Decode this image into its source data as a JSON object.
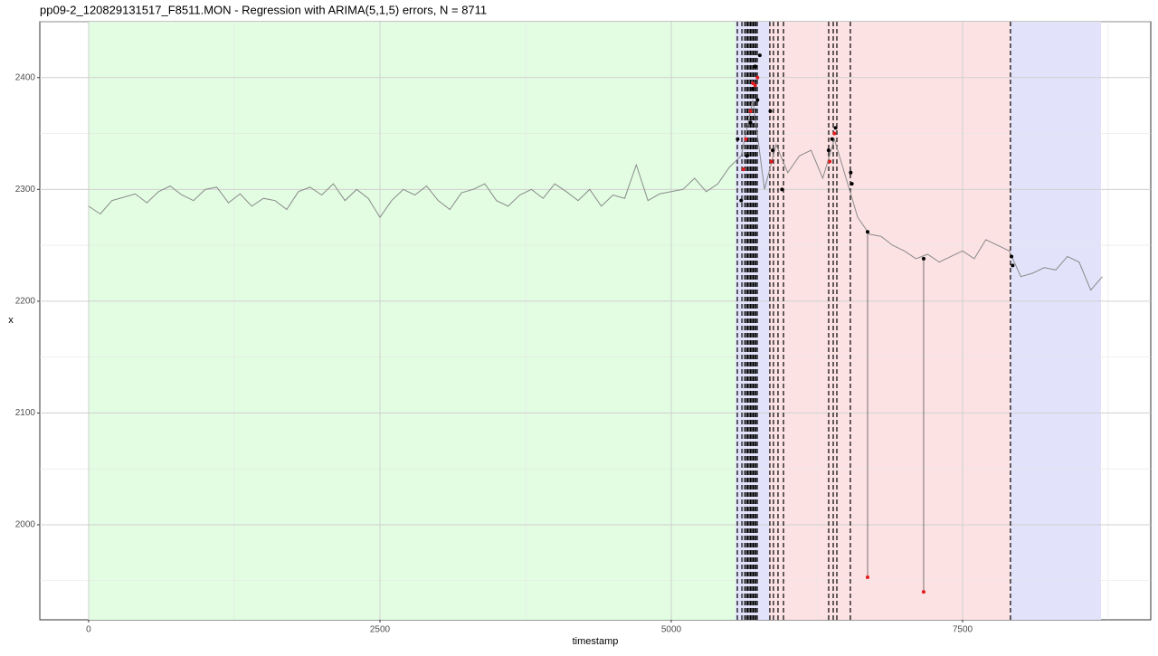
{
  "chart_data": {
    "type": "line",
    "title": "pp09-2_120829131517_F8511.MON - Regression with ARIMA(5,1,5) errors, N = 8711",
    "x_label": "timestamp",
    "y_label": "x",
    "xlim": [
      -419,
      9115
    ],
    "ylim": [
      1915,
      2450
    ],
    "xticks": [
      0,
      2500,
      5000,
      7500
    ],
    "yticks": [
      2000,
      2100,
      2200,
      2300,
      2400
    ],
    "xminor": [
      1250,
      3750,
      6250,
      8750
    ],
    "yminor": [
      1950,
      2050,
      2150,
      2250,
      2350,
      2450
    ],
    "grid": true,
    "regions": [
      {
        "start": 0,
        "end": 5551,
        "color": "#e2fde2"
      },
      {
        "start": 5551,
        "end": 5839,
        "color": "#e2e2fb"
      },
      {
        "start": 5839,
        "end": 7911,
        "color": "#fde2e4"
      },
      {
        "start": 7911,
        "end": 8688,
        "color": "#e2e2fb"
      }
    ],
    "vlines": [
      5567,
      5606,
      5630,
      5644,
      5656,
      5668,
      5680,
      5691,
      5703,
      5714,
      5726,
      5738,
      5846,
      5877,
      5916,
      5963,
      6351,
      6390,
      6421,
      6537,
      7911
    ],
    "series": [
      {
        "name": "x",
        "color": "#8a8a8a",
        "x": [
          0,
          100,
          200,
          300,
          400,
          500,
          600,
          700,
          800,
          900,
          1000,
          1100,
          1200,
          1300,
          1400,
          1500,
          1600,
          1700,
          1800,
          1900,
          2000,
          2100,
          2200,
          2300,
          2400,
          2500,
          2600,
          2700,
          2800,
          2900,
          3000,
          3100,
          3200,
          3300,
          3400,
          3500,
          3600,
          3700,
          3800,
          3900,
          4000,
          4100,
          4200,
          4300,
          4400,
          4500,
          4600,
          4700,
          4800,
          4900,
          5000,
          5100,
          5200,
          5300,
          5400,
          5500,
          5600,
          5700,
          5800,
          5900,
          6000,
          6100,
          6200,
          6300,
          6400,
          6500,
          6600,
          6700,
          6800,
          6900,
          7000,
          7100,
          7200,
          7300,
          7400,
          7500,
          7600,
          7700,
          7800,
          7900,
          8000,
          8100,
          8200,
          8300,
          8400,
          8500,
          8600,
          8700
        ],
        "values": [
          2285,
          2278,
          2290,
          2293,
          2296,
          2288,
          2298,
          2303,
          2295,
          2290,
          2300,
          2302,
          2288,
          2296,
          2285,
          2292,
          2290,
          2282,
          2298,
          2302,
          2295,
          2305,
          2290,
          2300,
          2292,
          2275,
          2290,
          2300,
          2295,
          2303,
          2290,
          2282,
          2297,
          2300,
          2305,
          2290,
          2285,
          2295,
          2300,
          2292,
          2305,
          2298,
          2290,
          2300,
          2285,
          2295,
          2292,
          2322,
          2290,
          2296,
          2298,
          2300,
          2310,
          2298,
          2305,
          2320,
          2330,
          2380,
          2300,
          2340,
          2315,
          2330,
          2335,
          2310,
          2345,
          2310,
          2275,
          2260,
          2258,
          2250,
          2245,
          2238,
          2242,
          2235,
          2240,
          2245,
          2238,
          2255,
          2250,
          2245,
          2222,
          2225,
          2230,
          2228,
          2240,
          2235,
          2210,
          2222
        ]
      }
    ],
    "points": [
      {
        "color": "#000000",
        "x": [
          5570,
          5600,
          5650,
          5680,
          5700,
          5720,
          5740,
          5760,
          5850,
          5870,
          5950,
          6350,
          6380,
          6410,
          6540,
          6550,
          6685,
          7166,
          7920,
          7930
        ],
        "values": [
          2345,
          2290,
          2330,
          2360,
          2390,
          2410,
          2380,
          2420,
          2370,
          2335,
          2300,
          2335,
          2345,
          2355,
          2315,
          2305,
          2262,
          2238,
          2240,
          2232
        ]
      },
      {
        "color": "#e31a1c",
        "x": [
          5620,
          5640,
          5680,
          5700,
          5720,
          5740,
          5860,
          6360,
          6400,
          6685,
          7166
        ],
        "values": [
          2318,
          2345,
          2370,
          2395,
          2393,
          2400,
          2325,
          2325,
          2350,
          1953,
          1940
        ]
      }
    ],
    "segments": [
      {
        "x": 6685,
        "from": 2262,
        "to": 1953
      },
      {
        "x": 7166,
        "from": 2238,
        "to": 1940
      }
    ]
  }
}
